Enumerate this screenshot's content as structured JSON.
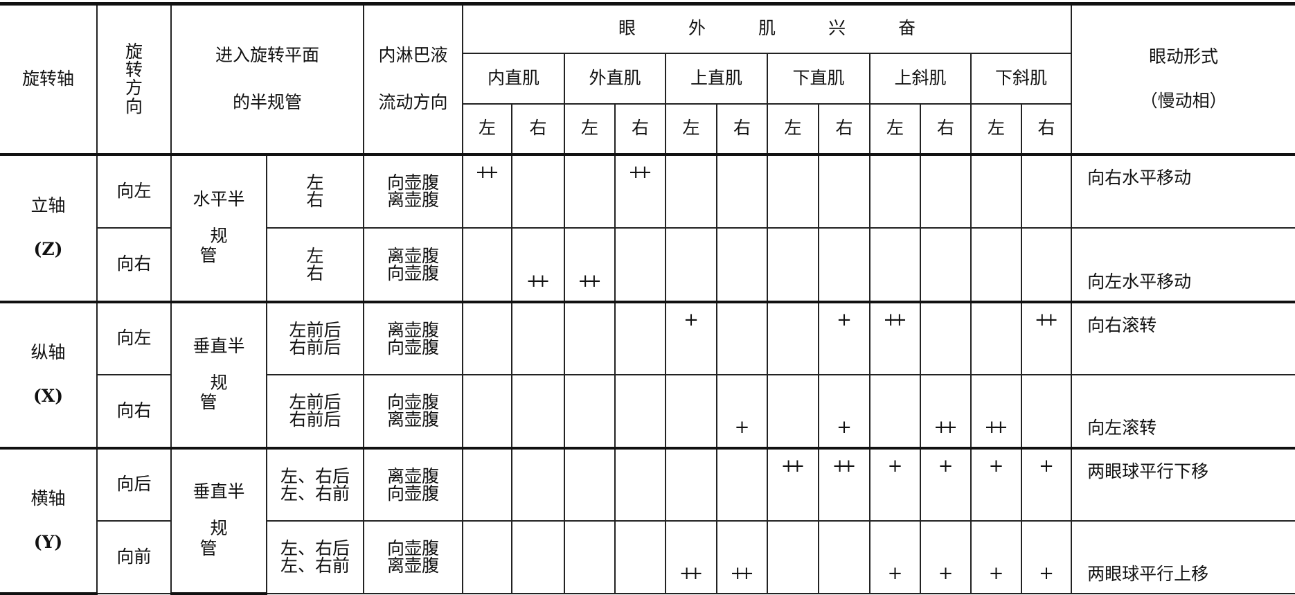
{
  "header": {
    "axis": "旋转轴",
    "direction": [
      "旋",
      "转",
      "方",
      "向"
    ],
    "canal": [
      "进入旋转平面",
      "的半规管"
    ],
    "flow": [
      "内淋巴液",
      "流动方向"
    ],
    "excitation": [
      "眼",
      "外",
      "肌",
      "兴",
      "奋"
    ],
    "muscles": [
      "内直肌",
      "外直肌",
      "上直肌",
      "下直肌",
      "上斜肌",
      "下斜肌"
    ],
    "sides": [
      "左",
      "右"
    ],
    "movement": [
      "眼动形式",
      "（慢动相）"
    ]
  },
  "groups": [
    {
      "axis": "立轴",
      "axis_code": "(Z)",
      "canal": [
        "水平半",
        "规管"
      ],
      "rows": [
        {
          "direction": "向左",
          "canals": [
            "左",
            "右"
          ],
          "flow": [
            "向壶腹",
            "离壶腹"
          ],
          "marks": [
            "++",
            "",
            "",
            "++",
            "",
            "",
            "",
            "",
            "",
            "",
            "",
            ""
          ],
          "movement": "向右水平移动"
        },
        {
          "direction": "向右",
          "canals": [
            "左",
            "右"
          ],
          "flow": [
            "离壶腹",
            "向壶腹"
          ],
          "marks": [
            "",
            "++",
            "++",
            "",
            "",
            "",
            "",
            "",
            "",
            "",
            "",
            ""
          ],
          "movement": "向左水平移动"
        }
      ]
    },
    {
      "axis": "纵轴",
      "axis_code": "(X)",
      "canal": [
        "垂直半",
        "规管"
      ],
      "rows": [
        {
          "direction": "向左",
          "canals": [
            "左前后",
            "右前后"
          ],
          "flow": [
            "离壶腹",
            "向壶腹"
          ],
          "marks": [
            "",
            "",
            "",
            "",
            "+",
            "",
            "",
            "+",
            "++",
            "",
            "",
            "++"
          ],
          "movement": "向右滚转"
        },
        {
          "direction": "向右",
          "canals": [
            "左前后",
            "右前后"
          ],
          "flow": [
            "向壶腹",
            "离壶腹"
          ],
          "marks": [
            "",
            "",
            "",
            "",
            "",
            "+",
            "",
            "+",
            "",
            "++",
            "++",
            ""
          ],
          "movement": "向左滚转"
        }
      ]
    },
    {
      "axis": "横轴",
      "axis_code": "(Y)",
      "canal": [
        "垂直半",
        "规管"
      ],
      "rows": [
        {
          "direction": "向后",
          "canals": [
            "左、右后",
            "左、右前"
          ],
          "flow": [
            "离壶腹",
            "向壶腹"
          ],
          "marks": [
            "",
            "",
            "",
            "",
            "",
            "",
            "++",
            "++",
            "+",
            "+",
            "+",
            "+"
          ],
          "movement": "两眼球平行下移"
        },
        {
          "direction": "向前",
          "canals": [
            "左、右后",
            "左、右前"
          ],
          "flow": [
            "向壶腹",
            "离壶腹"
          ],
          "marks": [
            "",
            "",
            "",
            "",
            "++",
            "++",
            "",
            "",
            "+",
            "+",
            "+",
            "+"
          ],
          "movement": "两眼球平行上移"
        }
      ]
    }
  ]
}
